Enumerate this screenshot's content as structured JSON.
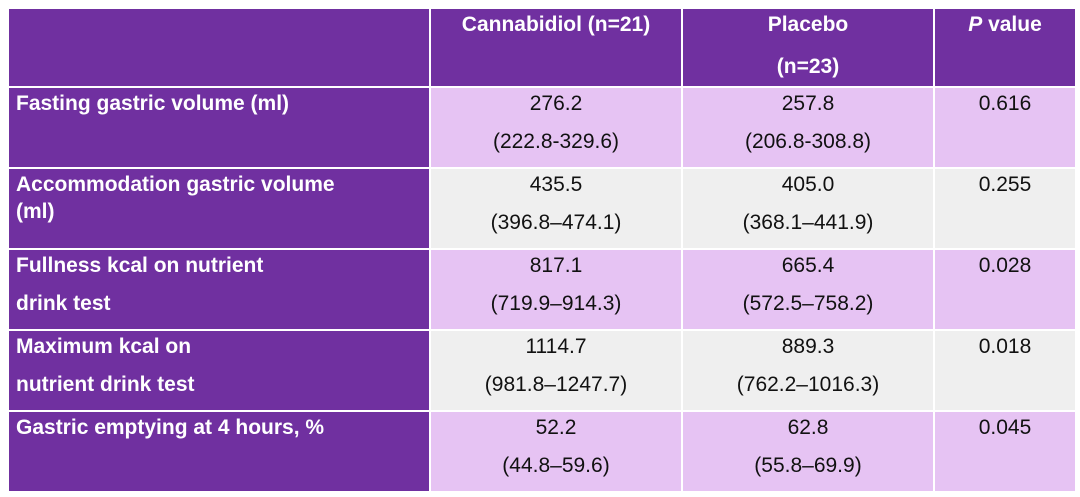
{
  "table": {
    "headers": {
      "col1": "Cannabidiol (n=21)",
      "col2_line1": "Placebo",
      "col2_line2": "(n=23)",
      "col3_italic": "P",
      "col3_rest": " value"
    },
    "rows": [
      {
        "label_line1": "Fasting gastric volume (ml)",
        "label_line2": "",
        "cbd_value": "276.2",
        "cbd_range": "(222.8-329.6)",
        "placebo_value": "257.8",
        "placebo_range": "(206.8-308.8)",
        "p_value": "0.616"
      },
      {
        "label_line1": "Accommodation gastric volume",
        "label_line2": "(ml)",
        "cbd_value": "435.5",
        "cbd_range": "(396.8–474.1)",
        "placebo_value": "405.0",
        "placebo_range": "(368.1–441.9)",
        "p_value": "0.255"
      },
      {
        "label_line1": "Fullness kcal on nutrient",
        "label_line2": "drink test",
        "cbd_value": "817.1",
        "cbd_range": "(719.9–914.3)",
        "placebo_value": "665.4",
        "placebo_range": "(572.5–758.2)",
        "p_value": "0.028"
      },
      {
        "label_line1": "Maximum kcal on",
        "label_line2": "nutrient drink test",
        "cbd_value": "1114.7",
        "cbd_range": "(981.8–1247.7)",
        "placebo_value": "889.3",
        "placebo_range": "(762.2–1016.3)",
        "p_value": "0.018"
      },
      {
        "label_line1": "Gastric emptying at 4 hours, %",
        "label_line2": "",
        "cbd_value": "52.2",
        "cbd_range": "(44.8–59.6)",
        "placebo_value": "62.8",
        "placebo_range": "(55.8–69.9)",
        "p_value": "0.045"
      }
    ]
  }
}
